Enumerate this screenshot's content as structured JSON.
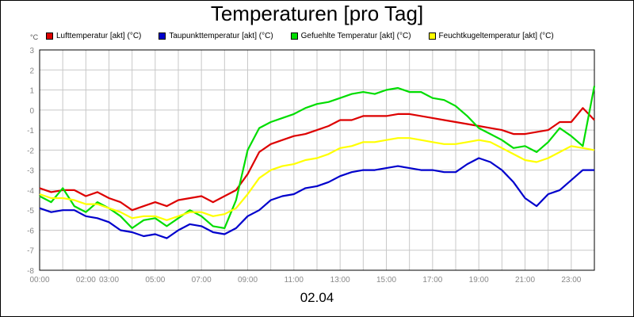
{
  "chart_data": {
    "type": "line",
    "title": "Temperaturen [pro Tag]",
    "unit_label": "°C",
    "date_label": "02.04",
    "ylim": [
      -8,
      3
    ],
    "y_ticks": [
      "3",
      "2",
      "1",
      "0",
      "-1",
      "-2",
      "-3",
      "-4",
      "-5",
      "-6",
      "-7",
      "-8"
    ],
    "x_range_hours": [
      0,
      24
    ],
    "x_ticks": [
      {
        "hour": 0,
        "label": "00:00"
      },
      {
        "hour": 2,
        "label": "02:00"
      },
      {
        "hour": 3,
        "label": "03:00"
      },
      {
        "hour": 5,
        "label": "05:00"
      },
      {
        "hour": 7,
        "label": "07:00"
      },
      {
        "hour": 9,
        "label": "09:00"
      },
      {
        "hour": 11,
        "label": "11:00"
      },
      {
        "hour": 13,
        "label": "13:00"
      },
      {
        "hour": 15,
        "label": "15:00"
      },
      {
        "hour": 17,
        "label": "17:00"
      },
      {
        "hour": 19,
        "label": "19:00"
      },
      {
        "hour": 21,
        "label": "21:00"
      },
      {
        "hour": 23,
        "label": "23:00"
      }
    ],
    "grid": true,
    "legend_position": "top",
    "series": [
      {
        "name": "Lufttemperatur [akt] (°C)",
        "color": "#dd0000",
        "points": [
          [
            0,
            -3.9
          ],
          [
            0.5,
            -4.1
          ],
          [
            1,
            -4
          ],
          [
            1.5,
            -4
          ],
          [
            2,
            -4.3
          ],
          [
            2.5,
            -4.1
          ],
          [
            3,
            -4.4
          ],
          [
            3.5,
            -4.6
          ],
          [
            4,
            -5
          ],
          [
            4.5,
            -4.8
          ],
          [
            5,
            -4.6
          ],
          [
            5.5,
            -4.8
          ],
          [
            6,
            -4.5
          ],
          [
            6.5,
            -4.4
          ],
          [
            7,
            -4.3
          ],
          [
            7.5,
            -4.6
          ],
          [
            8,
            -4.3
          ],
          [
            8.5,
            -4
          ],
          [
            9,
            -3.2
          ],
          [
            9.5,
            -2.1
          ],
          [
            10,
            -1.7
          ],
          [
            10.5,
            -1.5
          ],
          [
            11,
            -1.3
          ],
          [
            11.5,
            -1.2
          ],
          [
            12,
            -1
          ],
          [
            12.5,
            -0.8
          ],
          [
            13,
            -0.5
          ],
          [
            13.5,
            -0.5
          ],
          [
            14,
            -0.3
          ],
          [
            14.5,
            -0.3
          ],
          [
            15,
            -0.3
          ],
          [
            15.5,
            -0.2
          ],
          [
            16,
            -0.2
          ],
          [
            16.5,
            -0.3
          ],
          [
            17,
            -0.4
          ],
          [
            17.5,
            -0.5
          ],
          [
            18,
            -0.6
          ],
          [
            18.5,
            -0.7
          ],
          [
            19,
            -0.8
          ],
          [
            19.5,
            -0.9
          ],
          [
            20,
            -1
          ],
          [
            20.5,
            -1.2
          ],
          [
            21,
            -1.2
          ],
          [
            21.5,
            -1.1
          ],
          [
            22,
            -1
          ],
          [
            22.5,
            -0.6
          ],
          [
            23,
            -0.6
          ],
          [
            23.5,
            0.1
          ],
          [
            24,
            -0.5
          ]
        ]
      },
      {
        "name": "Taupunkttemperatur [akt] (°C)",
        "color": "#0000cc",
        "points": [
          [
            0,
            -4.9
          ],
          [
            0.5,
            -5.1
          ],
          [
            1,
            -5
          ],
          [
            1.5,
            -5
          ],
          [
            2,
            -5.3
          ],
          [
            2.5,
            -5.4
          ],
          [
            3,
            -5.6
          ],
          [
            3.5,
            -6
          ],
          [
            4,
            -6.1
          ],
          [
            4.5,
            -6.3
          ],
          [
            5,
            -6.2
          ],
          [
            5.5,
            -6.4
          ],
          [
            6,
            -6
          ],
          [
            6.5,
            -5.7
          ],
          [
            7,
            -5.8
          ],
          [
            7.5,
            -6.1
          ],
          [
            8,
            -6.2
          ],
          [
            8.5,
            -5.9
          ],
          [
            9,
            -5.3
          ],
          [
            9.5,
            -5
          ],
          [
            10,
            -4.5
          ],
          [
            10.5,
            -4.3
          ],
          [
            11,
            -4.2
          ],
          [
            11.5,
            -3.9
          ],
          [
            12,
            -3.8
          ],
          [
            12.5,
            -3.6
          ],
          [
            13,
            -3.3
          ],
          [
            13.5,
            -3.1
          ],
          [
            14,
            -3
          ],
          [
            14.5,
            -3
          ],
          [
            15,
            -2.9
          ],
          [
            15.5,
            -2.8
          ],
          [
            16,
            -2.9
          ],
          [
            16.5,
            -3
          ],
          [
            17,
            -3
          ],
          [
            17.5,
            -3.1
          ],
          [
            18,
            -3.1
          ],
          [
            18.5,
            -2.7
          ],
          [
            19,
            -2.4
          ],
          [
            19.5,
            -2.6
          ],
          [
            20,
            -3
          ],
          [
            20.5,
            -3.6
          ],
          [
            21,
            -4.4
          ],
          [
            21.5,
            -4.8
          ],
          [
            22,
            -4.2
          ],
          [
            22.5,
            -4
          ],
          [
            23,
            -3.5
          ],
          [
            23.5,
            -3
          ],
          [
            24,
            -3
          ]
        ]
      },
      {
        "name": "Gefuehlte Temperatur [akt] (°C)",
        "color": "#00dd00",
        "points": [
          [
            0,
            -4.3
          ],
          [
            0.5,
            -4.6
          ],
          [
            1,
            -3.9
          ],
          [
            1.5,
            -4.8
          ],
          [
            2,
            -5.1
          ],
          [
            2.5,
            -4.6
          ],
          [
            3,
            -4.9
          ],
          [
            3.5,
            -5.3
          ],
          [
            4,
            -5.9
          ],
          [
            4.5,
            -5.5
          ],
          [
            5,
            -5.4
          ],
          [
            5.5,
            -5.8
          ],
          [
            6,
            -5.4
          ],
          [
            6.5,
            -5
          ],
          [
            7,
            -5.3
          ],
          [
            7.5,
            -5.8
          ],
          [
            8,
            -5.9
          ],
          [
            8.5,
            -4.5
          ],
          [
            9,
            -2
          ],
          [
            9.5,
            -0.9
          ],
          [
            10,
            -0.6
          ],
          [
            10.5,
            -0.4
          ],
          [
            11,
            -0.2
          ],
          [
            11.5,
            0.1
          ],
          [
            12,
            0.3
          ],
          [
            12.5,
            0.4
          ],
          [
            13,
            0.6
          ],
          [
            13.5,
            0.8
          ],
          [
            14,
            0.9
          ],
          [
            14.5,
            0.8
          ],
          [
            15,
            1
          ],
          [
            15.5,
            1.1
          ],
          [
            16,
            0.9
          ],
          [
            16.5,
            0.9
          ],
          [
            17,
            0.6
          ],
          [
            17.5,
            0.5
          ],
          [
            18,
            0.2
          ],
          [
            18.5,
            -0.3
          ],
          [
            19,
            -0.9
          ],
          [
            19.5,
            -1.2
          ],
          [
            20,
            -1.5
          ],
          [
            20.5,
            -1.9
          ],
          [
            21,
            -1.8
          ],
          [
            21.5,
            -2.1
          ],
          [
            22,
            -1.6
          ],
          [
            22.5,
            -0.9
          ],
          [
            23,
            -1.3
          ],
          [
            23.5,
            -1.8
          ],
          [
            24,
            1.2
          ]
        ]
      },
      {
        "name": "Feuchtkugeltemperatur [akt] (°C)",
        "color": "#ffff00",
        "points": [
          [
            0,
            -4.2
          ],
          [
            0.5,
            -4.4
          ],
          [
            1,
            -4.4
          ],
          [
            1.5,
            -4.5
          ],
          [
            2,
            -4.7
          ],
          [
            2.5,
            -4.7
          ],
          [
            3,
            -4.9
          ],
          [
            3.5,
            -5.1
          ],
          [
            4,
            -5.4
          ],
          [
            4.5,
            -5.3
          ],
          [
            5,
            -5.3
          ],
          [
            5.5,
            -5.5
          ],
          [
            6,
            -5.3
          ],
          [
            6.5,
            -5.1
          ],
          [
            7,
            -5.1
          ],
          [
            7.5,
            -5.3
          ],
          [
            8,
            -5.2
          ],
          [
            8.5,
            -4.9
          ],
          [
            9,
            -4.2
          ],
          [
            9.5,
            -3.4
          ],
          [
            10,
            -3
          ],
          [
            10.5,
            -2.8
          ],
          [
            11,
            -2.7
          ],
          [
            11.5,
            -2.5
          ],
          [
            12,
            -2.4
          ],
          [
            12.5,
            -2.2
          ],
          [
            13,
            -1.9
          ],
          [
            13.5,
            -1.8
          ],
          [
            14,
            -1.6
          ],
          [
            14.5,
            -1.6
          ],
          [
            15,
            -1.5
          ],
          [
            15.5,
            -1.4
          ],
          [
            16,
            -1.4
          ],
          [
            16.5,
            -1.5
          ],
          [
            17,
            -1.6
          ],
          [
            17.5,
            -1.7
          ],
          [
            18,
            -1.7
          ],
          [
            18.5,
            -1.6
          ],
          [
            19,
            -1.5
          ],
          [
            19.5,
            -1.6
          ],
          [
            20,
            -1.9
          ],
          [
            20.5,
            -2.2
          ],
          [
            21,
            -2.5
          ],
          [
            21.5,
            -2.6
          ],
          [
            22,
            -2.4
          ],
          [
            22.5,
            -2.1
          ],
          [
            23,
            -1.8
          ],
          [
            23.5,
            -1.9
          ],
          [
            24,
            -2
          ]
        ]
      }
    ]
  }
}
